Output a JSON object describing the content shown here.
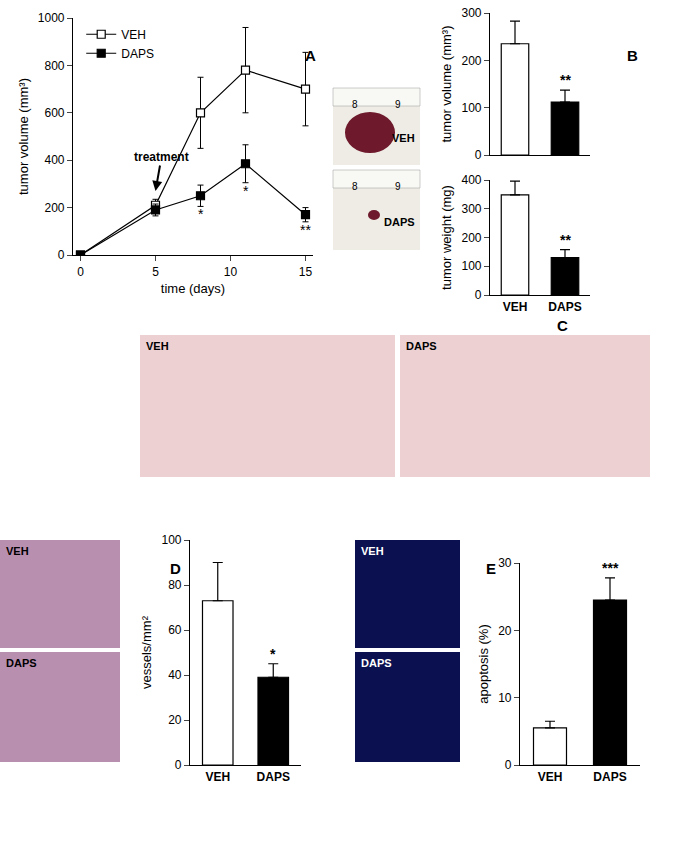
{
  "panels": [
    "A",
    "B",
    "C",
    "D",
    "E"
  ],
  "chart_data": [
    {
      "type": "line",
      "xlabel": "time (days)",
      "ylabel": "tumor volume (mm³)",
      "x": [
        0,
        5,
        8,
        11,
        15
      ],
      "xlim": [
        -0.5,
        15.5
      ],
      "xticks": [
        0,
        5,
        10,
        15
      ],
      "ylim": [
        0,
        1000
      ],
      "yticks": [
        0,
        200,
        400,
        600,
        800,
        1000
      ],
      "legend": "upper left",
      "series": [
        {
          "name": "VEH",
          "color": "#ffffff",
          "marker": "square",
          "values": [
            0,
            210,
            600,
            780,
            700
          ],
          "errors": [
            0,
            25,
            150,
            180,
            155
          ]
        },
        {
          "name": "DAPS",
          "color": "#000000",
          "marker": "square",
          "values": [
            0,
            190,
            250,
            385,
            170
          ],
          "errors": [
            0,
            25,
            45,
            80,
            30
          ],
          "significance": [
            null,
            null,
            "*",
            "*",
            "**"
          ]
        }
      ],
      "annotations": [
        {
          "text": "treatment",
          "x": 5,
          "y": 270
        }
      ]
    },
    {
      "type": "bar",
      "ylabel": "tumor volume (mm³)",
      "categories": [
        "VEH",
        "DAPS"
      ],
      "values": [
        235,
        112
      ],
      "errors": [
        48,
        25
      ],
      "colors": [
        "#ffffff",
        "#000000"
      ],
      "ylim": [
        0,
        300
      ],
      "yticks": [
        0,
        100,
        200,
        300
      ],
      "significance": [
        null,
        "**"
      ],
      "tick_labels": "y"
    },
    {
      "type": "bar",
      "ylabel": "tumor weight (mg)",
      "categories": [
        "VEH",
        "DAPS"
      ],
      "values": [
        348,
        130
      ],
      "errors": [
        48,
        28
      ],
      "colors": [
        "#ffffff",
        "#000000"
      ],
      "ylim": [
        0,
        400
      ],
      "yticks": [
        0,
        100,
        200,
        300,
        400
      ],
      "significance": [
        null,
        "**"
      ]
    },
    {
      "type": "bar",
      "ylabel": "vessels/mm²",
      "categories": [
        "VEH",
        "DAPS"
      ],
      "values": [
        73,
        39
      ],
      "errors": [
        17,
        6
      ],
      "colors": [
        "#ffffff",
        "#000000"
      ],
      "ylim": [
        0,
        100
      ],
      "yticks": [
        0,
        20,
        40,
        60,
        80,
        100
      ],
      "significance": [
        null,
        "*"
      ]
    },
    {
      "type": "bar",
      "ylabel": "apoptosis (%)",
      "categories": [
        "VEH",
        "DAPS"
      ],
      "values": [
        5.5,
        24.5
      ],
      "errors": [
        1,
        3.3
      ],
      "colors": [
        "#ffffff",
        "#000000"
      ],
      "ylim": [
        0,
        30
      ],
      "yticks": [
        0,
        10,
        20,
        30
      ],
      "significance": [
        null,
        "***"
      ]
    }
  ],
  "images": [
    {
      "tiles": [
        {
          "label": "VEH",
          "ruler": [
            "8",
            "9"
          ]
        },
        {
          "label": "DAPS",
          "ruler": [
            "8",
            "9"
          ]
        }
      ]
    },
    {
      "tiles": [
        {
          "label": "VEH"
        },
        {
          "label": "DAPS"
        }
      ]
    },
    {
      "tiles": [
        {
          "label": "VEH"
        },
        {
          "label": "DAPS"
        }
      ]
    },
    {
      "tiles": [
        {
          "label": "VEH"
        },
        {
          "label": "DAPS"
        }
      ]
    }
  ]
}
